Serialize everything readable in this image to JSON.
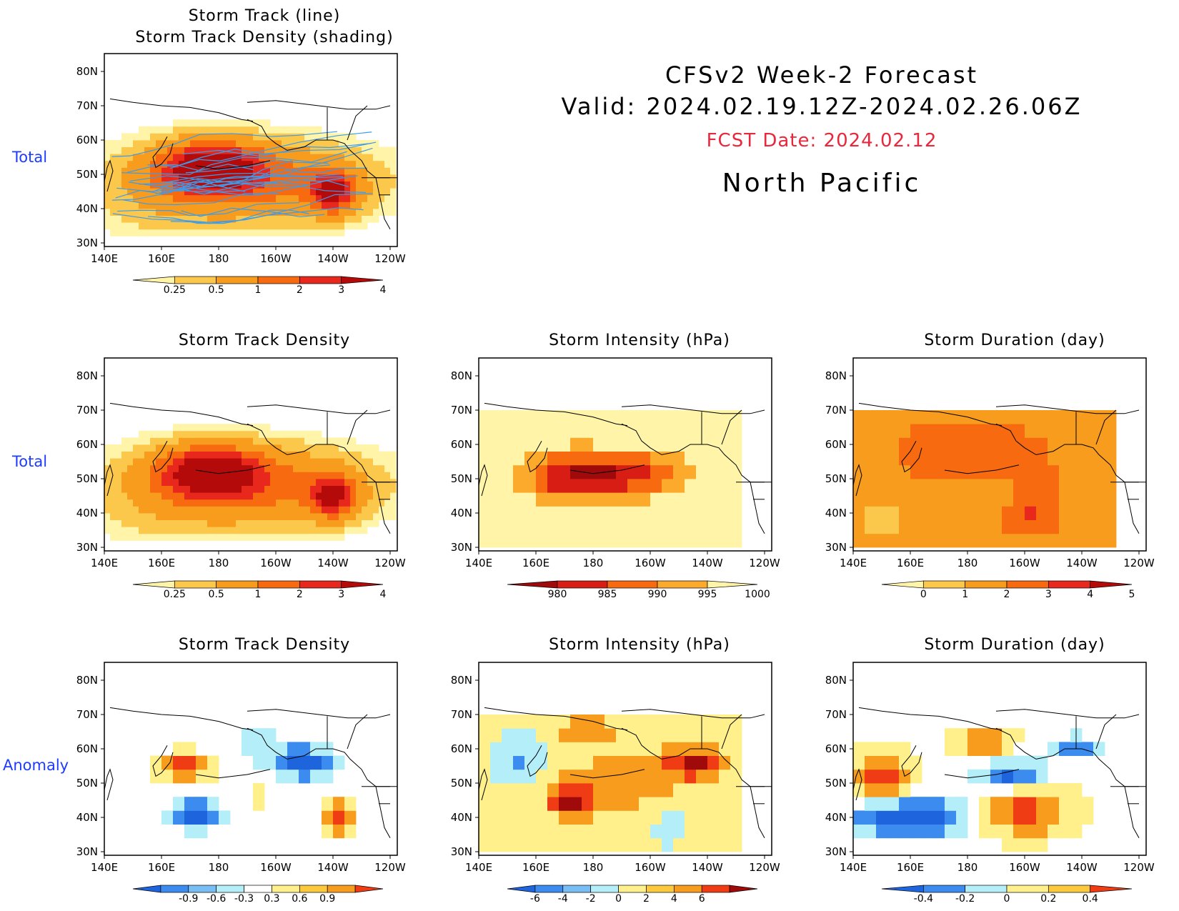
{
  "header": {
    "line1": "CFSv2 Week-2 Forecast",
    "line2": "Valid: 2024.02.19.12Z-2024.02.26.06Z",
    "fcst_date": "FCST Date: 2024.02.12",
    "region": "North Pacific"
  },
  "row_labels": {
    "row1": "Total",
    "row2": "Total",
    "row3": "Anomaly"
  },
  "axes": {
    "lat_labels": [
      "80N",
      "70N",
      "60N",
      "50N",
      "40N",
      "30N"
    ],
    "lon_labels": [
      "140E",
      "160E",
      "180",
      "160W",
      "140W",
      "120W"
    ]
  },
  "panels": {
    "p11": {
      "title": "Storm Track (line)\nStorm Track Density (shading)",
      "colorbar": {
        "ticks": [
          "0.25",
          "0.5",
          "1",
          "2",
          "3",
          "4"
        ],
        "colors": [
          "#fff4a8",
          "#fcc84c",
          "#f79c1c",
          "#f76a10",
          "#e8281c",
          "#b40a0a"
        ]
      }
    },
    "p21": {
      "title": "Storm Track Density",
      "colorbar": {
        "ticks": [
          "0.25",
          "0.5",
          "1",
          "2",
          "3",
          "4"
        ],
        "colors": [
          "#fff4a8",
          "#fcc84c",
          "#f79c1c",
          "#f76a10",
          "#e8281c",
          "#b40a0a"
        ]
      }
    },
    "p22": {
      "title": "Storm Intensity (hPa)",
      "colorbar": {
        "ticks": [
          "980",
          "985",
          "990",
          "995",
          "1000"
        ],
        "colors": [
          "#a00a0a",
          "#d81e14",
          "#f76a10",
          "#fcaa2c",
          "#fff4a8"
        ]
      }
    },
    "p23": {
      "title": "Storm Duration (day)",
      "colorbar": {
        "ticks": [
          "0",
          "1",
          "2",
          "3",
          "4",
          "5"
        ],
        "colors": [
          "#fff4a8",
          "#fcc84c",
          "#f79c1c",
          "#f76a10",
          "#e8281c",
          "#b40a0a"
        ]
      }
    },
    "p31": {
      "title": "Storm Track Density",
      "colorbar": {
        "ticks": [
          "-0.9",
          "-0.6",
          "-0.3",
          "0.3",
          "0.6",
          "0.9"
        ],
        "colors": [
          "#1e64dc",
          "#3c8cf0",
          "#78bef5",
          "#b4eef8",
          "#ffffff",
          "#fff08c",
          "#fcc83c",
          "#f79c1c",
          "#f03c14"
        ]
      }
    },
    "p32": {
      "title": "Storm Intensity (hPa)",
      "colorbar": {
        "ticks": [
          "-6",
          "-4",
          "-2",
          "0",
          "2",
          "4",
          "6"
        ],
        "colors": [
          "#1e64dc",
          "#3c8cf0",
          "#78bef5",
          "#b4eef8",
          "#fff08c",
          "#fcc83c",
          "#f79c1c",
          "#f03c14",
          "#a00a0a"
        ]
      }
    },
    "p33": {
      "title": "Storm Duration (day)",
      "colorbar": {
        "ticks": [
          "-0.4",
          "-0.2",
          "0",
          "0.2",
          "0.4"
        ],
        "colors": [
          "#1e64dc",
          "#3c8cf0",
          "#b4eef8",
          "#fff08c",
          "#fcc83c",
          "#f03c14"
        ]
      }
    }
  }
}
